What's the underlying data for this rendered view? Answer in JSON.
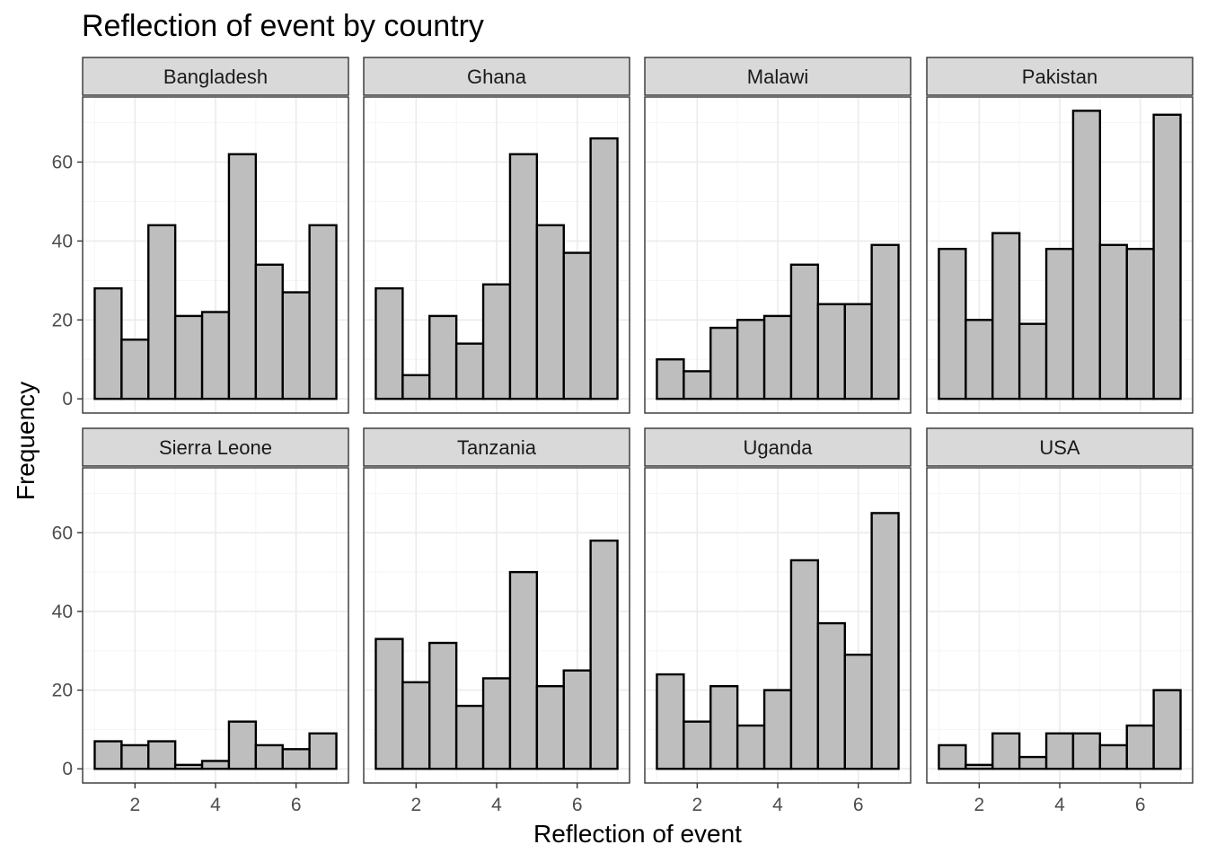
{
  "chart_data": {
    "type": "bar",
    "title": "Reflection of event by country",
    "xlabel": "Reflection of event",
    "ylabel": "Frequency",
    "xlim": [
      0.7,
      7.3
    ],
    "ylim": [
      -3.6,
      76.5
    ],
    "x_ticks": [
      2,
      4,
      6
    ],
    "y_ticks": [
      0,
      20,
      40,
      60
    ],
    "grid": true,
    "bin_edges": [
      1.0,
      1.667,
      2.333,
      3.0,
      3.667,
      4.333,
      5.0,
      5.667,
      6.333,
      7.0
    ],
    "colors": {
      "bar_fill": "#bebebe",
      "bar_outline": "#000000",
      "strip_fill": "#d9d9d9"
    },
    "facets": [
      {
        "name": "Bangladesh",
        "values": [
          28,
          15,
          44,
          21,
          22,
          62,
          34,
          27,
          44
        ]
      },
      {
        "name": "Ghana",
        "values": [
          28,
          6,
          21,
          14,
          29,
          62,
          44,
          37,
          66
        ]
      },
      {
        "name": "Malawi",
        "values": [
          10,
          7,
          18,
          20,
          21,
          34,
          24,
          24,
          39
        ]
      },
      {
        "name": "Pakistan",
        "values": [
          38,
          20,
          42,
          19,
          38,
          73,
          39,
          38,
          72
        ]
      },
      {
        "name": "Sierra Leone",
        "values": [
          7,
          6,
          7,
          1,
          2,
          12,
          6,
          5,
          9
        ]
      },
      {
        "name": "Tanzania",
        "values": [
          33,
          22,
          32,
          16,
          23,
          50,
          21,
          25,
          58
        ]
      },
      {
        "name": "Uganda",
        "values": [
          24,
          12,
          21,
          11,
          20,
          53,
          37,
          29,
          65
        ]
      },
      {
        "name": "USA",
        "values": [
          6,
          1,
          9,
          3,
          9,
          9,
          6,
          11,
          20
        ]
      }
    ]
  }
}
